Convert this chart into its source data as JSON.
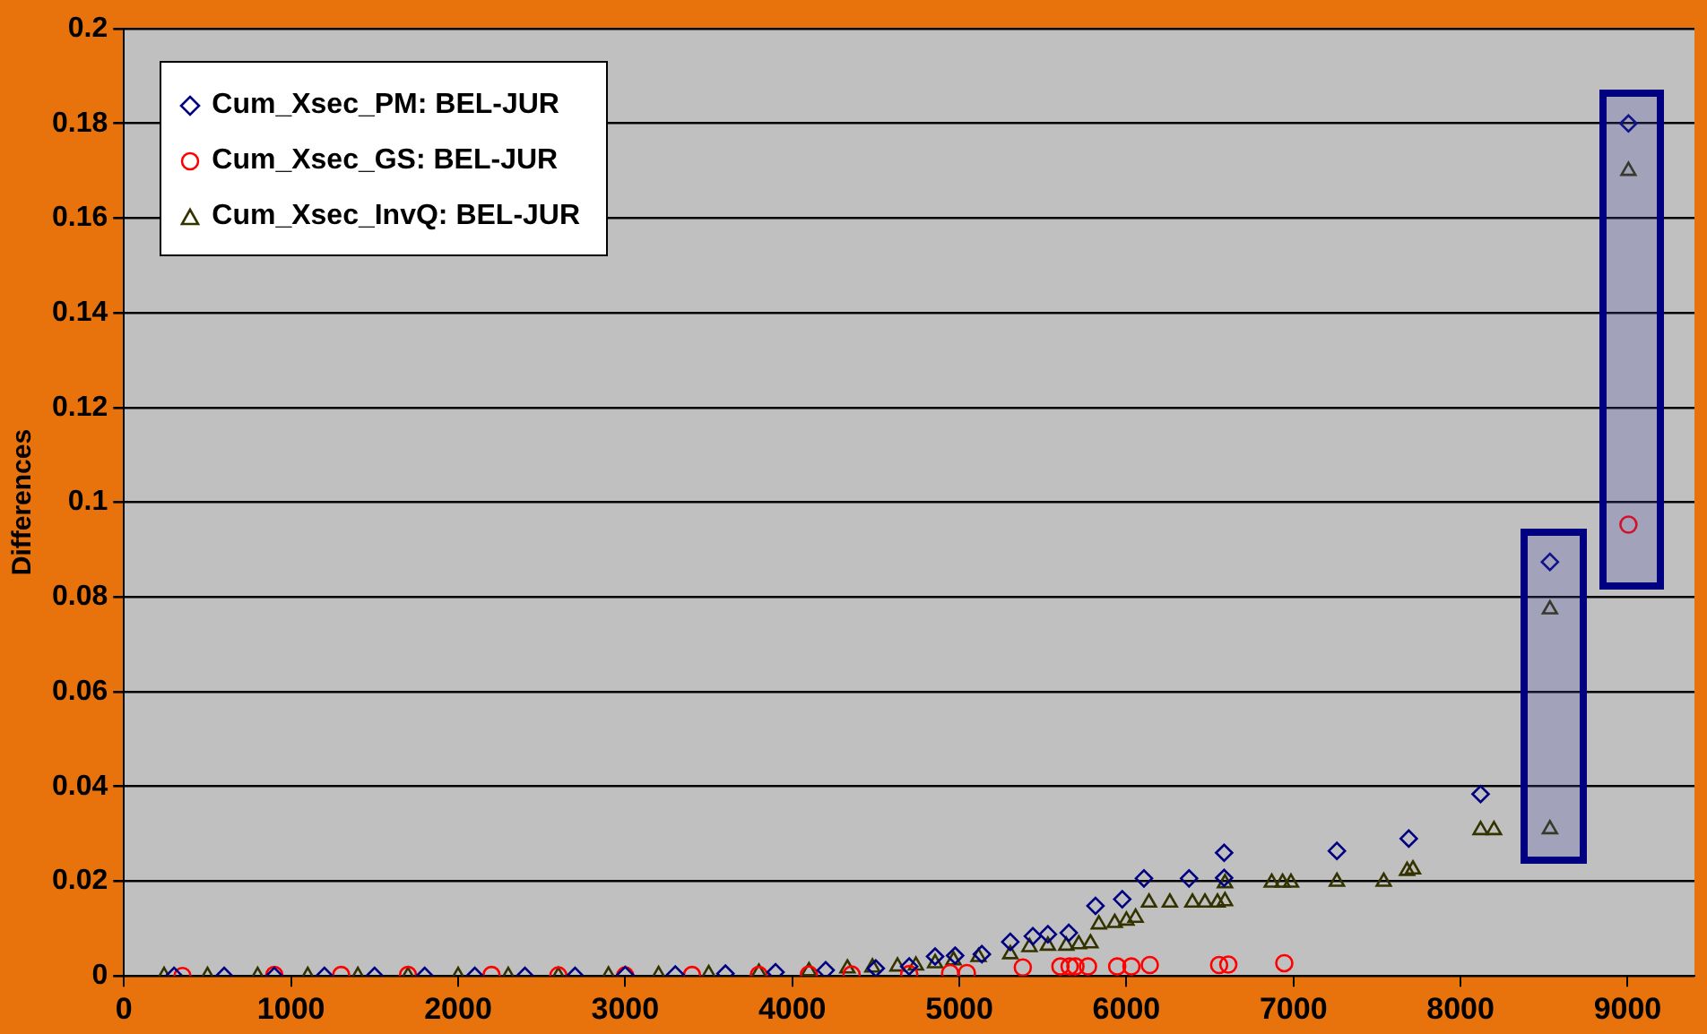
{
  "chart_data": {
    "type": "scatter",
    "ylabel": "Differences",
    "xlim": [
      0,
      9400
    ],
    "xticks": [
      0,
      1000,
      2000,
      3000,
      4000,
      5000,
      6000,
      7000,
      8000,
      9000
    ],
    "ylim": [
      0,
      0.2
    ],
    "yticks": [
      0,
      0.02,
      0.04,
      0.06,
      0.08,
      0.1,
      0.12,
      0.14,
      0.16,
      0.18,
      0.2
    ],
    "grid": "y",
    "legend": "top left",
    "series": [
      {
        "name": "Cum_Xsec_PM: BEL-JUR",
        "color": "#000080",
        "marker": "diamond",
        "x": [
          300,
          600,
          900,
          1200,
          1500,
          1800,
          2100,
          2400,
          2700,
          3000,
          3300,
          3600,
          3900,
          4200,
          4500,
          4700,
          4855,
          4975,
          5135,
          5305,
          5440,
          5530,
          5655,
          5815,
          5975,
          6105,
          6375,
          6585,
          6585,
          7260,
          7690,
          8120,
          8535,
          9005
        ],
        "values": [
          0,
          0,
          0,
          0,
          0,
          0,
          0,
          0,
          0,
          0.0002,
          0.0003,
          0.0005,
          0.0008,
          0.0012,
          0.0016,
          0.002,
          0.0041,
          0.0043,
          0.0046,
          0.0072,
          0.0084,
          0.0088,
          0.0091,
          0.0148,
          0.0162,
          0.0206,
          0.0206,
          0.0207,
          0.026,
          0.0264,
          0.029,
          0.0384,
          0.0874,
          0.18
        ]
      },
      {
        "name": "Cum_Xsec_GS: BEL-JUR",
        "color": "#ff0000",
        "marker": "circle",
        "x": [
          350,
          900,
          1300,
          1700,
          2200,
          2600,
          3000,
          3400,
          3800,
          4100,
          4355,
          4700,
          4945,
          5045,
          5380,
          5605,
          5660,
          5695,
          5770,
          5945,
          6030,
          6140,
          6555,
          6610,
          6945,
          9005
        ],
        "values": [
          0,
          0.0002,
          0.0002,
          0.0002,
          0.0002,
          0.0001,
          0.0001,
          0.0002,
          0.0002,
          0.0003,
          0.0003,
          0.0004,
          0.0006,
          0.0006,
          0.0018,
          0.002,
          0.002,
          0.002,
          0.002,
          0.002,
          0.002,
          0.0023,
          0.0023,
          0.0024,
          0.0027,
          0.0953
        ]
      },
      {
        "name": "Cum_Xsec_InvQ: BEL-JUR",
        "color": "#333300",
        "marker": "triangle",
        "x": [
          240,
          500,
          800,
          1100,
          1400,
          1700,
          2000,
          2300,
          2600,
          2900,
          3200,
          3500,
          3800,
          4100,
          4330,
          4480,
          4630,
          4740,
          4855,
          4965,
          5115,
          5305,
          5420,
          5530,
          5640,
          5715,
          5785,
          5835,
          5930,
          6000,
          6055,
          6135,
          6260,
          6395,
          6470,
          6545,
          6590,
          6590,
          6870,
          6935,
          6985,
          7260,
          7540,
          7680,
          7715,
          8120,
          8200,
          8535,
          8535,
          9005
        ],
        "values": [
          0,
          0,
          0,
          0,
          0,
          0,
          0,
          0,
          0,
          0.0001,
          0.0002,
          0.0004,
          0.0007,
          0.001,
          0.0016,
          0.0018,
          0.002,
          0.0022,
          0.0027,
          0.0033,
          0.004,
          0.0046,
          0.0061,
          0.0064,
          0.0064,
          0.0067,
          0.0069,
          0.0109,
          0.0112,
          0.0117,
          0.0123,
          0.0155,
          0.0155,
          0.0155,
          0.0155,
          0.0155,
          0.0158,
          0.0196,
          0.0197,
          0.0197,
          0.0197,
          0.0199,
          0.0199,
          0.0222,
          0.0225,
          0.0308,
          0.0308,
          0.031,
          0.0774,
          0.17
        ]
      }
    ]
  }
}
